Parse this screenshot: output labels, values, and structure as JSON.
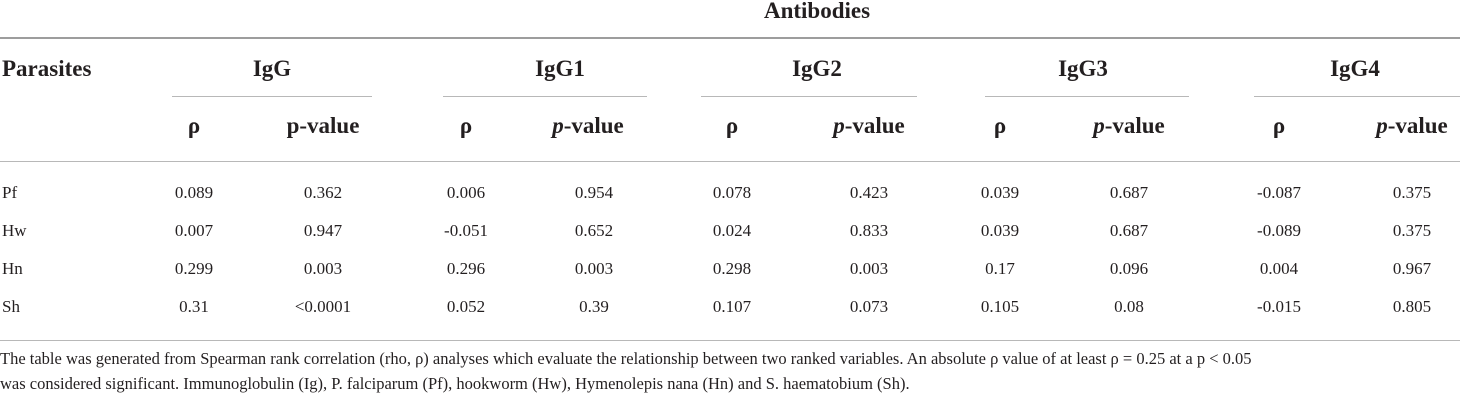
{
  "table": {
    "group_header": "Antibodies",
    "row_header": "Parasites",
    "groups": [
      "IgG",
      "IgG1",
      "IgG2",
      "IgG3",
      "IgG4"
    ],
    "subheaders": {
      "rho": "ρ",
      "pvalue_plain": "p-value",
      "pvalue_italic_p": "p",
      "pvalue_rest": "-value"
    },
    "rows": [
      {
        "parasite": "Pf",
        "values": [
          "0.089",
          "0.362",
          "0.006",
          "0.954",
          "0.078",
          "0.423",
          "0.039",
          "0.687",
          "-0.087",
          "0.375"
        ]
      },
      {
        "parasite": "Hw",
        "values": [
          "0.007",
          "0.947",
          "-0.051",
          "0.652",
          "0.024",
          "0.833",
          "0.039",
          "0.687",
          "-0.089",
          "0.375"
        ]
      },
      {
        "parasite": "Hn",
        "values": [
          "0.299",
          "0.003",
          "0.296",
          "0.003",
          "0.298",
          "0.003",
          "0.17",
          "0.096",
          "0.004",
          "0.967"
        ]
      },
      {
        "parasite": "Sh",
        "values": [
          "0.31",
          "<0.0001",
          "0.052",
          "0.39",
          "0.107",
          "0.073",
          "0.105",
          "0.08",
          "-0.015",
          "0.805"
        ]
      }
    ]
  },
  "caption": {
    "line1": "The table was generated from Spearman rank correlation (rho, ρ) analyses which evaluate the relationship between two ranked variables. An absolute ρ value of at least ρ = 0.25 at a p < 0.05",
    "line2": "was considered significant. Immunoglobulin (Ig), P. falciparum (Pf), hookworm (Hw), Hymenolepis nana (Hn) and S. haematobium (Sh)."
  }
}
